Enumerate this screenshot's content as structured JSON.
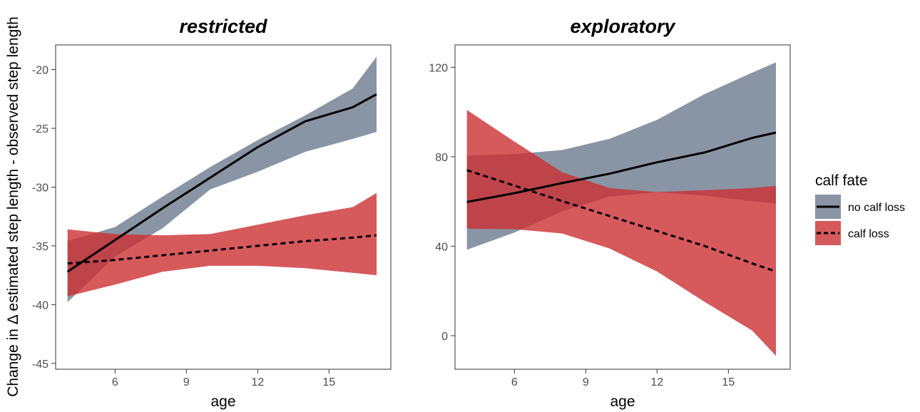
{
  "chart_data": {
    "type": "line",
    "ylabel": "Change in Δ estimated step length - observed step length",
    "legend": {
      "title": "calf fate",
      "position": "right",
      "entries": [
        {
          "label": "no calf loss",
          "color": "#6b7a8d",
          "linetype": "solid"
        },
        {
          "label": "calf loss",
          "color": "#cc2f33",
          "linetype": "dashed"
        }
      ]
    },
    "panels": [
      {
        "title": "restricted",
        "xlabel": "age",
        "xlim": [
          3.5,
          17.6
        ],
        "ylim": [
          -45.5,
          -17.9
        ],
        "xticks": [
          6,
          9,
          12,
          15
        ],
        "yticks": [
          -45,
          -40,
          -35,
          -30,
          -25,
          -20
        ],
        "series": [
          {
            "name": "no calf loss",
            "color": "#6b7a8d",
            "linetype": "solid",
            "x": [
              4,
              6,
              8,
              10,
              12,
              14,
              16,
              17
            ],
            "y": [
              -37.2,
              -34.5,
              -31.8,
              -29.2,
              -26.6,
              -24.4,
              -23.2,
              -22.1
            ],
            "lower": [
              -39.8,
              -35.9,
              -33.5,
              -30.2,
              -28.7,
              -27.0,
              -25.9,
              -25.3
            ],
            "upper": [
              -34.6,
              -33.4,
              -30.8,
              -28.3,
              -26.0,
              -23.9,
              -21.6,
              -18.9
            ]
          },
          {
            "name": "calf loss",
            "color": "#cc2f33",
            "linetype": "dashed",
            "x": [
              4,
              6,
              8,
              10,
              12,
              14,
              16,
              17
            ],
            "y": [
              -36.5,
              -36.2,
              -35.8,
              -35.4,
              -35.0,
              -34.6,
              -34.3,
              -34.1
            ],
            "lower": [
              -39.3,
              -38.3,
              -37.2,
              -36.7,
              -36.7,
              -36.9,
              -37.3,
              -37.5
            ],
            "upper": [
              -33.6,
              -34.0,
              -34.1,
              -34.0,
              -33.2,
              -32.4,
              -31.7,
              -30.5
            ]
          }
        ]
      },
      {
        "title": "exploratory",
        "xlabel": "age",
        "xlim": [
          3.5,
          17.6
        ],
        "ylim": [
          -15,
          130
        ],
        "xticks": [
          6,
          9,
          12,
          15
        ],
        "yticks": [
          0,
          40,
          80,
          120
        ],
        "series": [
          {
            "name": "no calf loss",
            "color": "#6b7a8d",
            "linetype": "solid",
            "x": [
              4,
              6,
              8,
              10,
              12,
              14,
              16,
              17
            ],
            "y": [
              59.8,
              63.7,
              68.2,
              72.4,
              77.5,
              81.9,
              88.4,
              90.8
            ],
            "lower": [
              38.4,
              46.1,
              55.6,
              62.2,
              64.2,
              62.6,
              60.1,
              59.1
            ],
            "upper": [
              80.5,
              81.2,
              83.0,
              88.0,
              96.5,
              108.0,
              117.6,
              122.2
            ]
          },
          {
            "name": "calf loss",
            "color": "#cc2f33",
            "linetype": "dashed",
            "x": [
              4,
              6,
              8,
              10,
              12,
              14,
              16,
              17
            ],
            "y": [
              74.0,
              67.1,
              60.2,
              53.5,
              46.8,
              40.1,
              32.3,
              28.7
            ],
            "lower": [
              47.8,
              47.6,
              45.7,
              39.0,
              28.7,
              15.1,
              2.3,
              -9.0
            ],
            "upper": [
              100.9,
              86.8,
              73.1,
              66.0,
              64.2,
              65.1,
              66.0,
              67.0
            ]
          }
        ]
      }
    ]
  }
}
